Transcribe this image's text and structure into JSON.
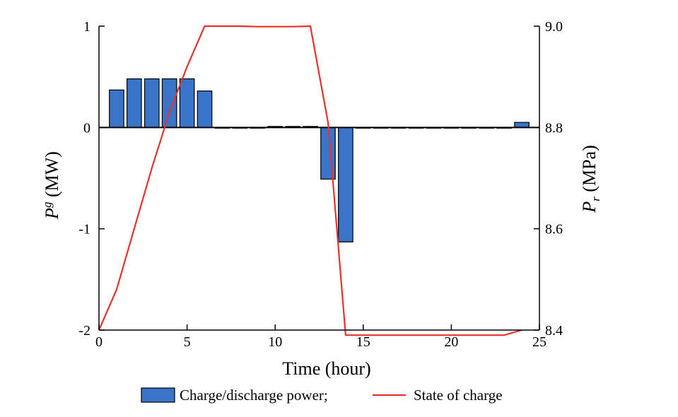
{
  "chart_data": {
    "type": "bar",
    "xlabel": "Time (hour)",
    "ylabel_left": {
      "main": "P",
      "sup": "g",
      "rest": " (MW)"
    },
    "ylabel_right": {
      "main": "P",
      "sub": "r",
      "rest": " (MPa)"
    },
    "xlim": [
      0,
      25
    ],
    "ylim_left": [
      -2,
      1
    ],
    "ylim_right": [
      8.4,
      9.0
    ],
    "x_ticks": [
      "0",
      "5",
      "10",
      "15",
      "20",
      "25"
    ],
    "y_left_ticks": [
      "-2",
      "-1",
      "0",
      "1"
    ],
    "y_right_ticks": [
      "8.4",
      "8.6",
      "8.8",
      "9.0"
    ],
    "legend_position": "bottom",
    "series": [
      {
        "name": "Charge/discharge power;",
        "type": "bar",
        "axis": "left",
        "color": "#3a74c8",
        "x": [
          1,
          2,
          3,
          4,
          5,
          6,
          7,
          8,
          9,
          10,
          11,
          12,
          13,
          14,
          15,
          16,
          17,
          18,
          19,
          20,
          21,
          22,
          23,
          24
        ],
        "values": [
          0.37,
          0.48,
          0.48,
          0.48,
          0.48,
          0.36,
          0,
          0,
          0,
          0.01,
          0.01,
          0.01,
          -0.51,
          -1.13,
          0,
          0,
          0,
          0,
          0,
          0,
          0,
          0,
          0,
          0.05
        ]
      },
      {
        "name": "State of charge",
        "type": "line",
        "axis": "right",
        "color": "#e8332d",
        "x": [
          0,
          1,
          2,
          3,
          4,
          5,
          6,
          7,
          8,
          9,
          10,
          11,
          12,
          13,
          14,
          15,
          16,
          17,
          18,
          19,
          20,
          21,
          22,
          23,
          24
        ],
        "values": [
          8.4,
          8.48,
          8.6,
          8.72,
          8.83,
          8.92,
          9.0,
          9.0,
          9.0,
          8.999,
          8.999,
          8.999,
          9.0,
          8.81,
          8.39,
          8.39,
          8.39,
          8.39,
          8.39,
          8.39,
          8.39,
          8.39,
          8.39,
          8.39,
          8.4
        ]
      }
    ]
  }
}
